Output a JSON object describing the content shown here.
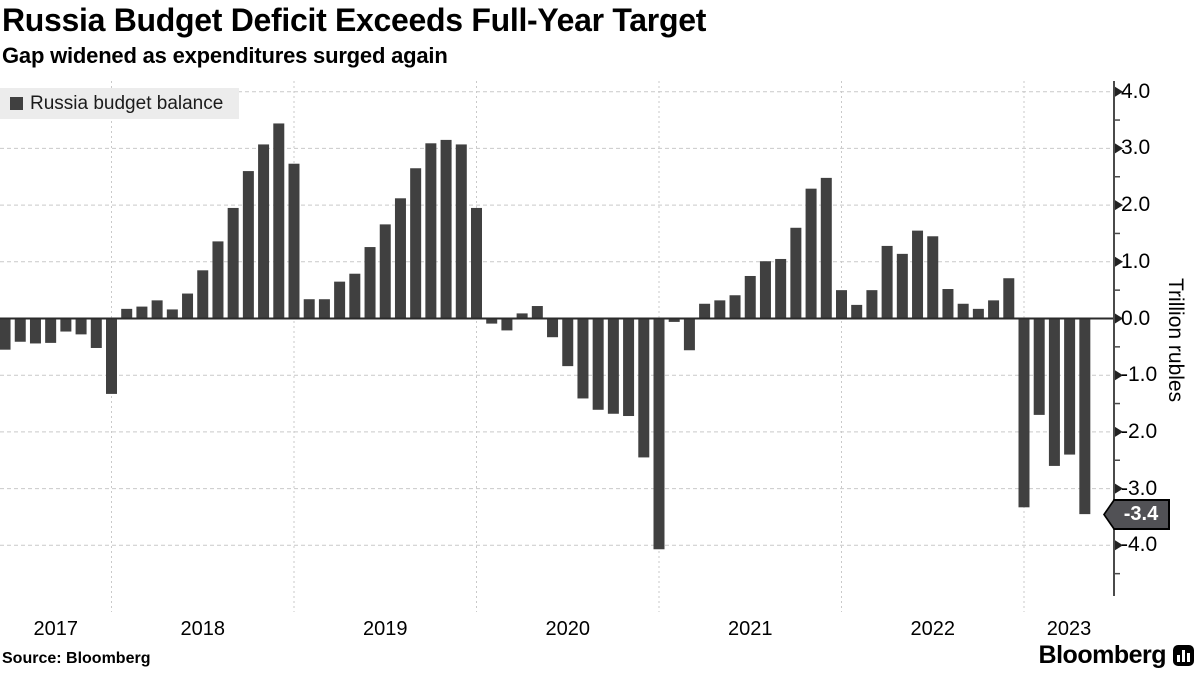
{
  "header": {
    "title": "Russia Budget Deficit Exceeds Full-Year Target",
    "subtitle": "Gap widened as expenditures surged again"
  },
  "legend": {
    "label": "Russia budget balance"
  },
  "y_axis": {
    "title": "Trillion rubles",
    "tick_labels": [
      "4.0",
      "3.0",
      "2.0",
      "1.0",
      "0.0",
      "-1.0",
      "-2.0",
      "-3.0",
      "-4.0"
    ],
    "tick_values": [
      4,
      3,
      2,
      1,
      0,
      -1,
      -2,
      -3,
      -4
    ],
    "minor_tick_values": [
      3.5,
      2.5,
      1.5,
      0.5,
      -0.5,
      -1.5,
      -2.5,
      -3.5,
      -4.5
    ],
    "last_value_badge": "-3.4"
  },
  "x_axis": {
    "year_labels": [
      "2017",
      "2018",
      "2019",
      "2020",
      "2021",
      "2022",
      "2023"
    ]
  },
  "footer": {
    "source": "Source: Bloomberg",
    "brand": "Bloomberg"
  },
  "colors": {
    "bar": "#404040",
    "gridline": "#c9c9c9",
    "zero_line": "#2b2b2b",
    "axis": "#4a4a4a",
    "tick": "#222222",
    "legend_bg": "#ececec",
    "badge_bg": "#515155",
    "badge_text": "#ffffff",
    "background": "#ffffff"
  },
  "chart_data": {
    "type": "bar",
    "title": "Russia Budget Deficit Exceeds Full-Year Target",
    "subtitle": "Gap widened as expenditures surged again",
    "ylabel": "Trillion rubles",
    "ylim": [
      -4.9,
      4.2
    ],
    "y_ticks": [
      4,
      3,
      2,
      1,
      0,
      -1,
      -2,
      -3,
      -4
    ],
    "grid": "dashed horizontal at integers, dashed vertical at year boundaries",
    "legend_position": "top-left",
    "axis_side": "right",
    "x": [
      "2017-05",
      "2017-06",
      "2017-07",
      "2017-08",
      "2017-09",
      "2017-10",
      "2017-11",
      "2017-12",
      "2018-01",
      "2018-02",
      "2018-03",
      "2018-04",
      "2018-05",
      "2018-06",
      "2018-07",
      "2018-08",
      "2018-09",
      "2018-10",
      "2018-11",
      "2018-12",
      "2019-01",
      "2019-02",
      "2019-03",
      "2019-04",
      "2019-05",
      "2019-06",
      "2019-07",
      "2019-08",
      "2019-09",
      "2019-10",
      "2019-11",
      "2019-12",
      "2020-01",
      "2020-02",
      "2020-03",
      "2020-04",
      "2020-05",
      "2020-06",
      "2020-07",
      "2020-08",
      "2020-09",
      "2020-10",
      "2020-11",
      "2020-12",
      "2021-01",
      "2021-02",
      "2021-03",
      "2021-04",
      "2021-05",
      "2021-06",
      "2021-07",
      "2021-08",
      "2021-09",
      "2021-10",
      "2021-11",
      "2021-12",
      "2022-01",
      "2022-02",
      "2022-03",
      "2022-04",
      "2022-05",
      "2022-06",
      "2022-07",
      "2022-08",
      "2022-09",
      "2022-10",
      "2022-11",
      "2022-12",
      "2023-01",
      "2023-02",
      "2023-03",
      "2023-04"
    ],
    "series": [
      {
        "name": "Russia budget balance",
        "values": [
          -0.55,
          -0.41,
          -0.44,
          -0.43,
          -0.23,
          -0.28,
          -0.52,
          -1.33,
          0.17,
          0.21,
          0.32,
          0.16,
          0.44,
          0.85,
          1.36,
          1.95,
          2.6,
          3.07,
          3.44,
          2.73,
          0.34,
          0.34,
          0.65,
          0.79,
          1.26,
          1.66,
          2.12,
          2.65,
          3.09,
          3.15,
          3.07,
          1.95,
          -0.09,
          -0.21,
          0.09,
          0.22,
          -0.33,
          -0.84,
          -1.41,
          -1.61,
          -1.68,
          -1.72,
          -2.45,
          -4.07,
          -0.06,
          -0.56,
          0.26,
          0.32,
          0.41,
          0.75,
          1.01,
          1.05,
          1.6,
          2.29,
          2.48,
          0.5,
          0.24,
          0.5,
          1.28,
          1.14,
          1.55,
          1.45,
          0.52,
          0.26,
          0.17,
          0.32,
          0.71,
          -3.33,
          -1.7,
          -2.6,
          -2.4,
          -3.45
        ]
      }
    ],
    "annotations": [
      {
        "label": "-3.4",
        "x": "2023-04",
        "y": -3.4,
        "style": "dark tag on right axis"
      }
    ]
  }
}
